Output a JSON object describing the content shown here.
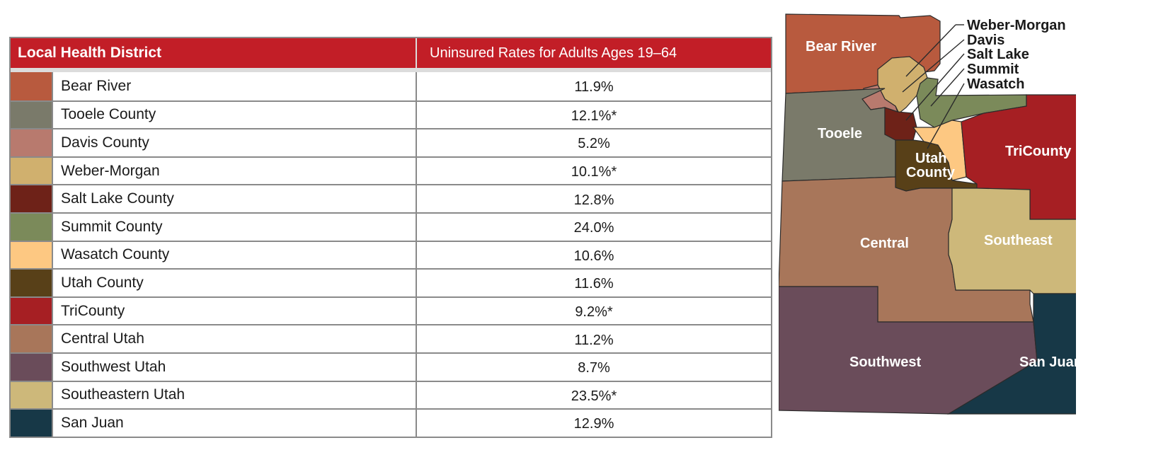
{
  "table": {
    "header_district": "Local Health District",
    "header_rate": "Uninsured Rates for Adults Ages 19–64",
    "rows": [
      {
        "name": "Bear River",
        "rate": "11.9%",
        "color": "#b85a3e"
      },
      {
        "name": "Tooele County",
        "rate": "12.1%*",
        "color": "#7a7a6a"
      },
      {
        "name": "Davis County",
        "rate": "5.2%",
        "color": "#b87a6e"
      },
      {
        "name": "Weber-Morgan",
        "rate": "10.1%*",
        "color": "#d0b06e"
      },
      {
        "name": "Salt Lake County",
        "rate": "12.8%",
        "color": "#6e2218"
      },
      {
        "name": "Summit County",
        "rate": "24.0%",
        "color": "#7b8a5a"
      },
      {
        "name": "Wasatch County",
        "rate": "10.6%",
        "color": "#fdc882"
      },
      {
        "name": "Utah County",
        "rate": "11.6%",
        "color": "#584018"
      },
      {
        "name": "TriCounty",
        "rate": "9.2%*",
        "color": "#a61f23"
      },
      {
        "name": "Central Utah",
        "rate": "11.2%",
        "color": "#a8765a"
      },
      {
        "name": "Southwest Utah",
        "rate": "8.7%",
        "color": "#6a4c5a"
      },
      {
        "name": "Southeastern Utah",
        "rate": "23.5%*",
        "color": "#cdb87a"
      },
      {
        "name": "San Juan",
        "rate": "12.9%",
        "color": "#173847"
      }
    ]
  },
  "map": {
    "labels": {
      "bear_river": "Bear River",
      "tooele": "Tooele",
      "utah_county_1": "Utah",
      "utah_county_2": "County",
      "tricounty": "TriCounty",
      "central": "Central",
      "southeast": "Southeast",
      "southwest": "Southwest",
      "san_juan": "San Juan"
    },
    "callouts": {
      "weber_morgan": "Weber-Morgan",
      "davis": "Davis",
      "salt_lake": "Salt Lake",
      "summit": "Summit",
      "wasatch": "Wasatch"
    }
  }
}
